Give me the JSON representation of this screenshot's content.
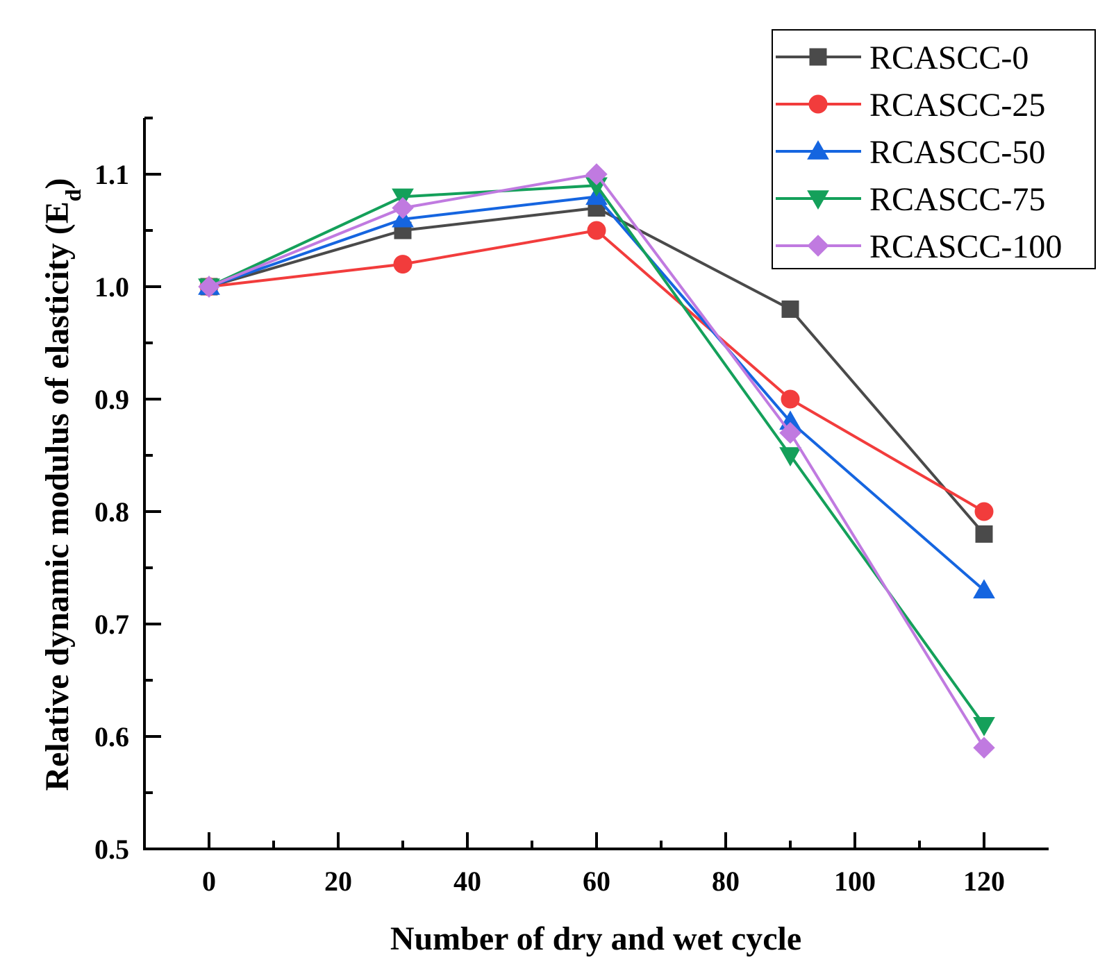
{
  "chart_data": {
    "type": "line",
    "title": "",
    "xlabel": "Number of dry and wet cycle",
    "ylabel_main": "Relative dynamic modulus of elasticity (E",
    "ylabel_sub": "d",
    "ylabel_close": ")",
    "xlim": [
      -10,
      130
    ],
    "ylim": [
      0.5,
      1.15
    ],
    "x_ticks": [
      0,
      20,
      40,
      60,
      80,
      100,
      120
    ],
    "x_tick_labels": [
      "0",
      "20",
      "40",
      "60",
      "80",
      "100",
      "120"
    ],
    "y_ticks": [
      0.5,
      0.6,
      0.7,
      0.8,
      0.9,
      1.0,
      1.1
    ],
    "y_tick_labels": [
      "0.5",
      "0.6",
      "0.7",
      "0.8",
      "0.9",
      "1.0",
      "1.1"
    ],
    "x": [
      0,
      30,
      60,
      90,
      120
    ],
    "legend_position": "top-right",
    "series": [
      {
        "name": "RCASCC-0",
        "color": "#4a4a4a",
        "marker": "square",
        "values": [
          1.0,
          1.05,
          1.07,
          0.98,
          0.78
        ]
      },
      {
        "name": "RCASCC-25",
        "color": "#f23c3c",
        "marker": "circle",
        "values": [
          1.0,
          1.02,
          1.05,
          0.9,
          0.8
        ]
      },
      {
        "name": "RCASCC-50",
        "color": "#1565e0",
        "marker": "triangle-up",
        "values": [
          1.0,
          1.06,
          1.08,
          0.88,
          0.73
        ]
      },
      {
        "name": "RCASCC-75",
        "color": "#14a05a",
        "marker": "triangle-down",
        "values": [
          1.0,
          1.08,
          1.09,
          0.85,
          0.61
        ]
      },
      {
        "name": "RCASCC-100",
        "color": "#c07ae0",
        "marker": "diamond",
        "values": [
          1.0,
          1.07,
          1.1,
          0.87,
          0.59
        ]
      }
    ]
  }
}
